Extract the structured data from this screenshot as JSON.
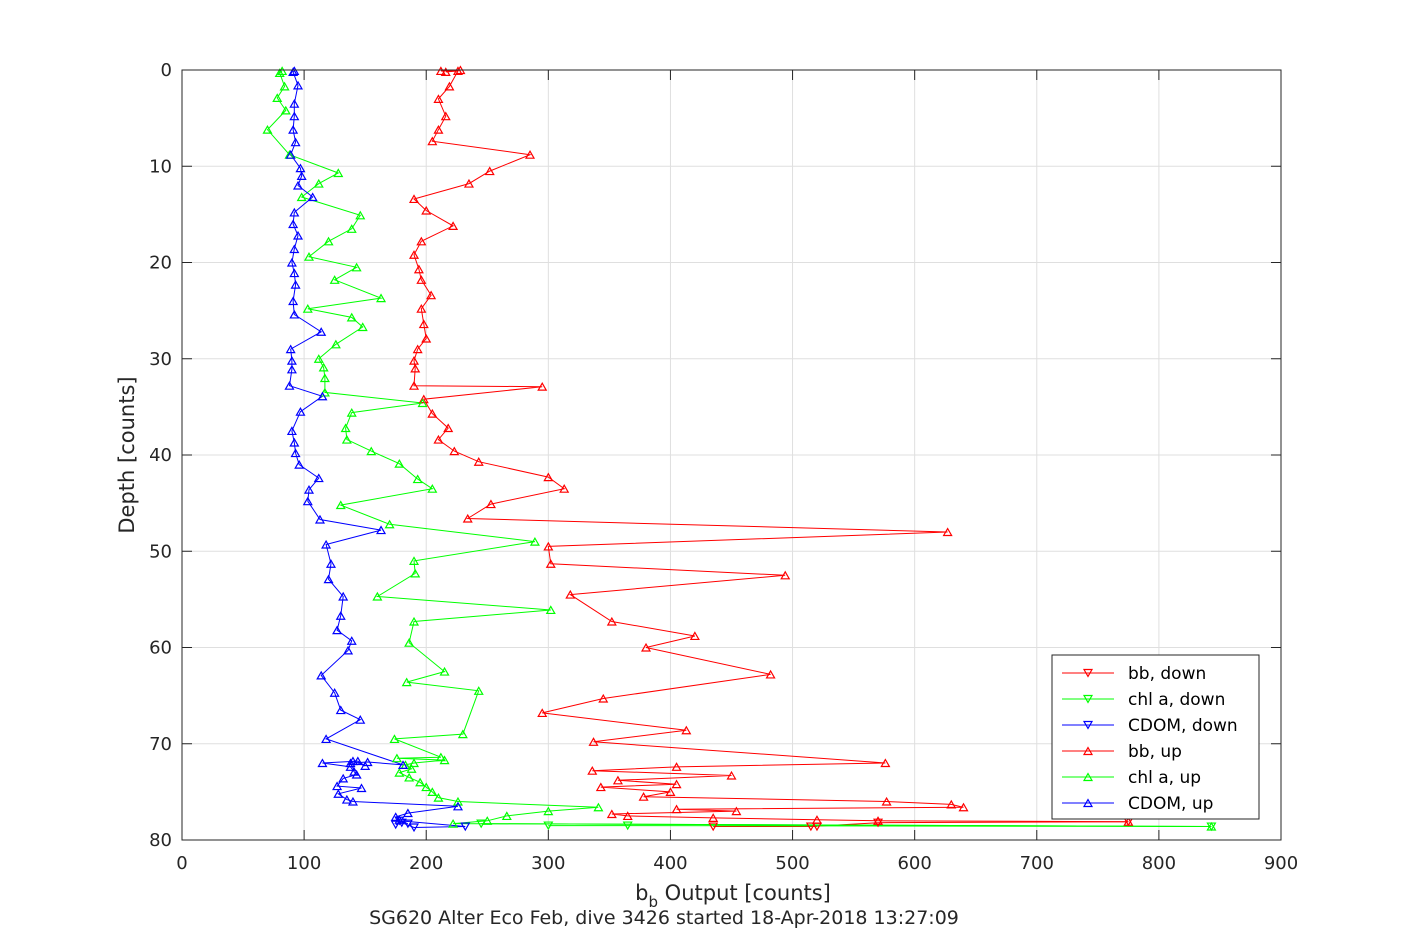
{
  "chart_data": {
    "type": "line",
    "title": "SG620 Alter Eco Feb, dive 3426 started 18-Apr-2018 13:27:09",
    "xlabel": "b",
    "xlabel_subscript": "b",
    "xlabel_suffix": " Output [counts]",
    "ylabel": "Depth [counts]",
    "xlim": [
      0,
      900
    ],
    "ylim": [
      0,
      80
    ],
    "y_reversed": true,
    "grid": true,
    "legend_position": "bottom-right",
    "xticks": [
      0,
      100,
      200,
      300,
      400,
      500,
      600,
      700,
      800,
      900
    ],
    "yticks": [
      0,
      10,
      20,
      30,
      40,
      50,
      60,
      70,
      80
    ],
    "series": [
      {
        "name": "bb, down",
        "color": "#ff0000",
        "marker": "triangle-down",
        "x": [
          435,
          520,
          515,
          570,
          775
        ],
        "y": [
          78.6,
          78.6,
          78.6,
          78.2,
          78.1
        ]
      },
      {
        "name": "chl a, down",
        "color": "#00ff00",
        "marker": "triangle-down",
        "x": [
          300,
          365,
          843,
          245
        ],
        "y": [
          78.5,
          78.5,
          78.6,
          78.3
        ]
      },
      {
        "name": "CDOM, down",
        "color": "#0000ff",
        "marker": "triangle-down",
        "x": [
          175,
          180,
          190,
          232,
          178,
          185
        ],
        "y": [
          78.4,
          78.2,
          78.7,
          78.6,
          78.0,
          78.3
        ]
      },
      {
        "name": "bb, up",
        "color": "#ff0000",
        "marker": "triangle-up",
        "x": [
          775,
          570,
          520,
          435,
          365,
          352,
          454,
          405,
          640,
          630,
          577,
          378,
          400,
          343,
          405,
          357,
          450,
          336,
          405,
          576,
          337,
          413,
          295,
          345,
          482,
          380,
          420,
          352,
          318,
          494,
          302,
          300,
          627,
          234,
          253,
          313,
          300,
          243,
          223,
          210,
          218,
          205,
          198,
          295,
          190,
          191,
          190,
          193,
          200,
          198,
          196,
          204,
          196,
          194,
          190,
          196,
          222,
          200,
          190,
          235,
          252,
          285,
          205,
          210,
          216,
          210,
          219,
          226,
          216,
          228,
          212
        ],
        "y": [
          78.1,
          78.0,
          77.9,
          77.7,
          77.5,
          77.3,
          77.0,
          76.8,
          76.6,
          76.3,
          76.0,
          75.5,
          75.0,
          74.5,
          74.2,
          73.8,
          73.3,
          72.8,
          72.4,
          72.0,
          69.8,
          68.6,
          66.8,
          65.3,
          62.8,
          60.0,
          58.8,
          57.3,
          54.5,
          52.5,
          51.3,
          49.5,
          48.0,
          46.6,
          45.1,
          43.5,
          42.3,
          40.7,
          39.6,
          38.4,
          37.2,
          35.7,
          34.2,
          32.9,
          32.8,
          31.0,
          30.2,
          29.0,
          27.9,
          26.4,
          24.8,
          23.4,
          21.8,
          20.7,
          19.2,
          17.8,
          16.2,
          14.6,
          13.4,
          11.8,
          10.5,
          8.8,
          7.4,
          6.2,
          4.8,
          3.0,
          1.7,
          0.1,
          0.2,
          0.0,
          0.1
        ],
        "line_path": [
          [
            775,
            78.1
          ],
          [
            570,
            78.0
          ],
          [
            520,
            77.9
          ],
          [
            435,
            77.7
          ],
          [
            365,
            77.5
          ],
          [
            352,
            77.3
          ],
          [
            454,
            77.0
          ],
          [
            405,
            76.8
          ],
          [
            640,
            76.6
          ],
          [
            630,
            76.3
          ],
          [
            577,
            76.0
          ],
          [
            378,
            75.5
          ],
          [
            400,
            75.0
          ],
          [
            343,
            74.5
          ],
          [
            405,
            74.2
          ],
          [
            357,
            73.8
          ],
          [
            450,
            73.3
          ],
          [
            336,
            72.8
          ],
          [
            405,
            72.4
          ],
          [
            576,
            72.0
          ],
          [
            337,
            69.8
          ],
          [
            413,
            68.6
          ],
          [
            295,
            66.8
          ],
          [
            345,
            65.3
          ],
          [
            482,
            62.8
          ],
          [
            380,
            60.0
          ],
          [
            420,
            58.8
          ],
          [
            352,
            57.3
          ],
          [
            318,
            54.5
          ],
          [
            494,
            52.5
          ],
          [
            302,
            51.3
          ],
          [
            300,
            49.5
          ],
          [
            627,
            48.0
          ],
          [
            234,
            46.6
          ],
          [
            253,
            45.1
          ],
          [
            313,
            43.5
          ],
          [
            300,
            42.3
          ],
          [
            243,
            40.7
          ],
          [
            223,
            39.6
          ],
          [
            210,
            38.4
          ],
          [
            218,
            37.2
          ],
          [
            205,
            35.7
          ],
          [
            198,
            34.2
          ],
          [
            295,
            32.9
          ],
          [
            190,
            32.8
          ],
          [
            191,
            31.0
          ],
          [
            190,
            30.2
          ],
          [
            193,
            29.0
          ],
          [
            200,
            27.9
          ],
          [
            198,
            26.4
          ],
          [
            196,
            24.8
          ],
          [
            204,
            23.4
          ],
          [
            196,
            21.8
          ],
          [
            194,
            20.7
          ],
          [
            190,
            19.2
          ],
          [
            196,
            17.8
          ],
          [
            222,
            16.2
          ],
          [
            200,
            14.6
          ],
          [
            190,
            13.4
          ],
          [
            235,
            11.8
          ],
          [
            252,
            10.5
          ],
          [
            285,
            8.8
          ],
          [
            205,
            7.4
          ],
          [
            210,
            6.2
          ],
          [
            216,
            4.8
          ],
          [
            210,
            3.0
          ],
          [
            219,
            1.7
          ],
          [
            226,
            0.1
          ],
          [
            216,
            0.2
          ],
          [
            228,
            0.0
          ],
          [
            212,
            0.1
          ]
        ]
      },
      {
        "name": "chl a, up",
        "color": "#00ff00",
        "marker": "triangle-up",
        "x": [
          843,
          222,
          250,
          266,
          300,
          341,
          226,
          210,
          205,
          200,
          195,
          186,
          178,
          188,
          183,
          190,
          215,
          176,
          212,
          174,
          230,
          243,
          184,
          215,
          186,
          190,
          302,
          160,
          191,
          190,
          289,
          170,
          130,
          205,
          193,
          178,
          155,
          135,
          134,
          139,
          197,
          117,
          117,
          116,
          112,
          126,
          148,
          139,
          103,
          163,
          125,
          143,
          104,
          120,
          139,
          146,
          98,
          112,
          128,
          88,
          70,
          85,
          78,
          84,
          80,
          82
        ],
        "y": [
          78.6,
          78.3,
          78.0,
          77.5,
          77.0,
          76.6,
          76.0,
          75.6,
          75.0,
          74.5,
          74.0,
          73.5,
          73.0,
          72.6,
          72.2,
          72.0,
          71.7,
          71.5,
          71.4,
          69.5,
          69.0,
          64.5,
          63.6,
          62.5,
          59.5,
          57.3,
          56.1,
          54.7,
          52.3,
          51.0,
          49.0,
          47.2,
          45.2,
          43.5,
          42.5,
          40.9,
          39.6,
          38.4,
          37.2,
          35.6,
          34.6,
          33.5,
          32.0,
          30.9,
          30.0,
          28.5,
          26.7,
          25.7,
          24.8,
          23.7,
          21.8,
          20.5,
          19.4,
          17.8,
          16.5,
          15.1,
          13.2,
          11.8,
          10.7,
          8.8,
          6.2,
          4.2,
          2.9,
          1.7,
          0.3,
          0.1
        ]
      },
      {
        "name": "CDOM, up",
        "color": "#0000ff",
        "marker": "triangle-up",
        "x": [
          178,
          175,
          185,
          226,
          140,
          135,
          128,
          147,
          127,
          132,
          143,
          141,
          138,
          115,
          144,
          150,
          140,
          138,
          152,
          181,
          118,
          146,
          130,
          125,
          114,
          136,
          139,
          127,
          130,
          132,
          120,
          122,
          118,
          163,
          113,
          103,
          104,
          112,
          96,
          93,
          92,
          90,
          97,
          115,
          88,
          90,
          90,
          89,
          114,
          92,
          91,
          93,
          92,
          90,
          92,
          95,
          91,
          92,
          107,
          95,
          98,
          97,
          89,
          93,
          91,
          92,
          92,
          95,
          91,
          92
        ],
        "y": [
          77.9,
          77.6,
          77.2,
          76.5,
          76.0,
          75.8,
          75.2,
          74.6,
          74.4,
          73.6,
          73.2,
          72.9,
          72.4,
          72.0,
          71.8,
          72.3,
          71.8,
          72.0,
          71.9,
          72.2,
          69.5,
          67.5,
          66.5,
          64.7,
          62.9,
          60.3,
          59.3,
          58.2,
          56.7,
          54.7,
          52.9,
          51.3,
          49.3,
          47.8,
          46.7,
          44.8,
          43.6,
          42.4,
          41.0,
          39.8,
          38.7,
          37.5,
          35.5,
          33.9,
          32.8,
          31.1,
          30.2,
          29.0,
          27.2,
          25.4,
          24.0,
          22.3,
          21.1,
          20.0,
          18.6,
          17.2,
          16.0,
          14.8,
          13.2,
          12.0,
          11.0,
          10.2,
          8.8,
          7.5,
          6.2,
          4.8,
          3.5,
          1.6,
          0.2,
          0.1
        ]
      }
    ]
  }
}
